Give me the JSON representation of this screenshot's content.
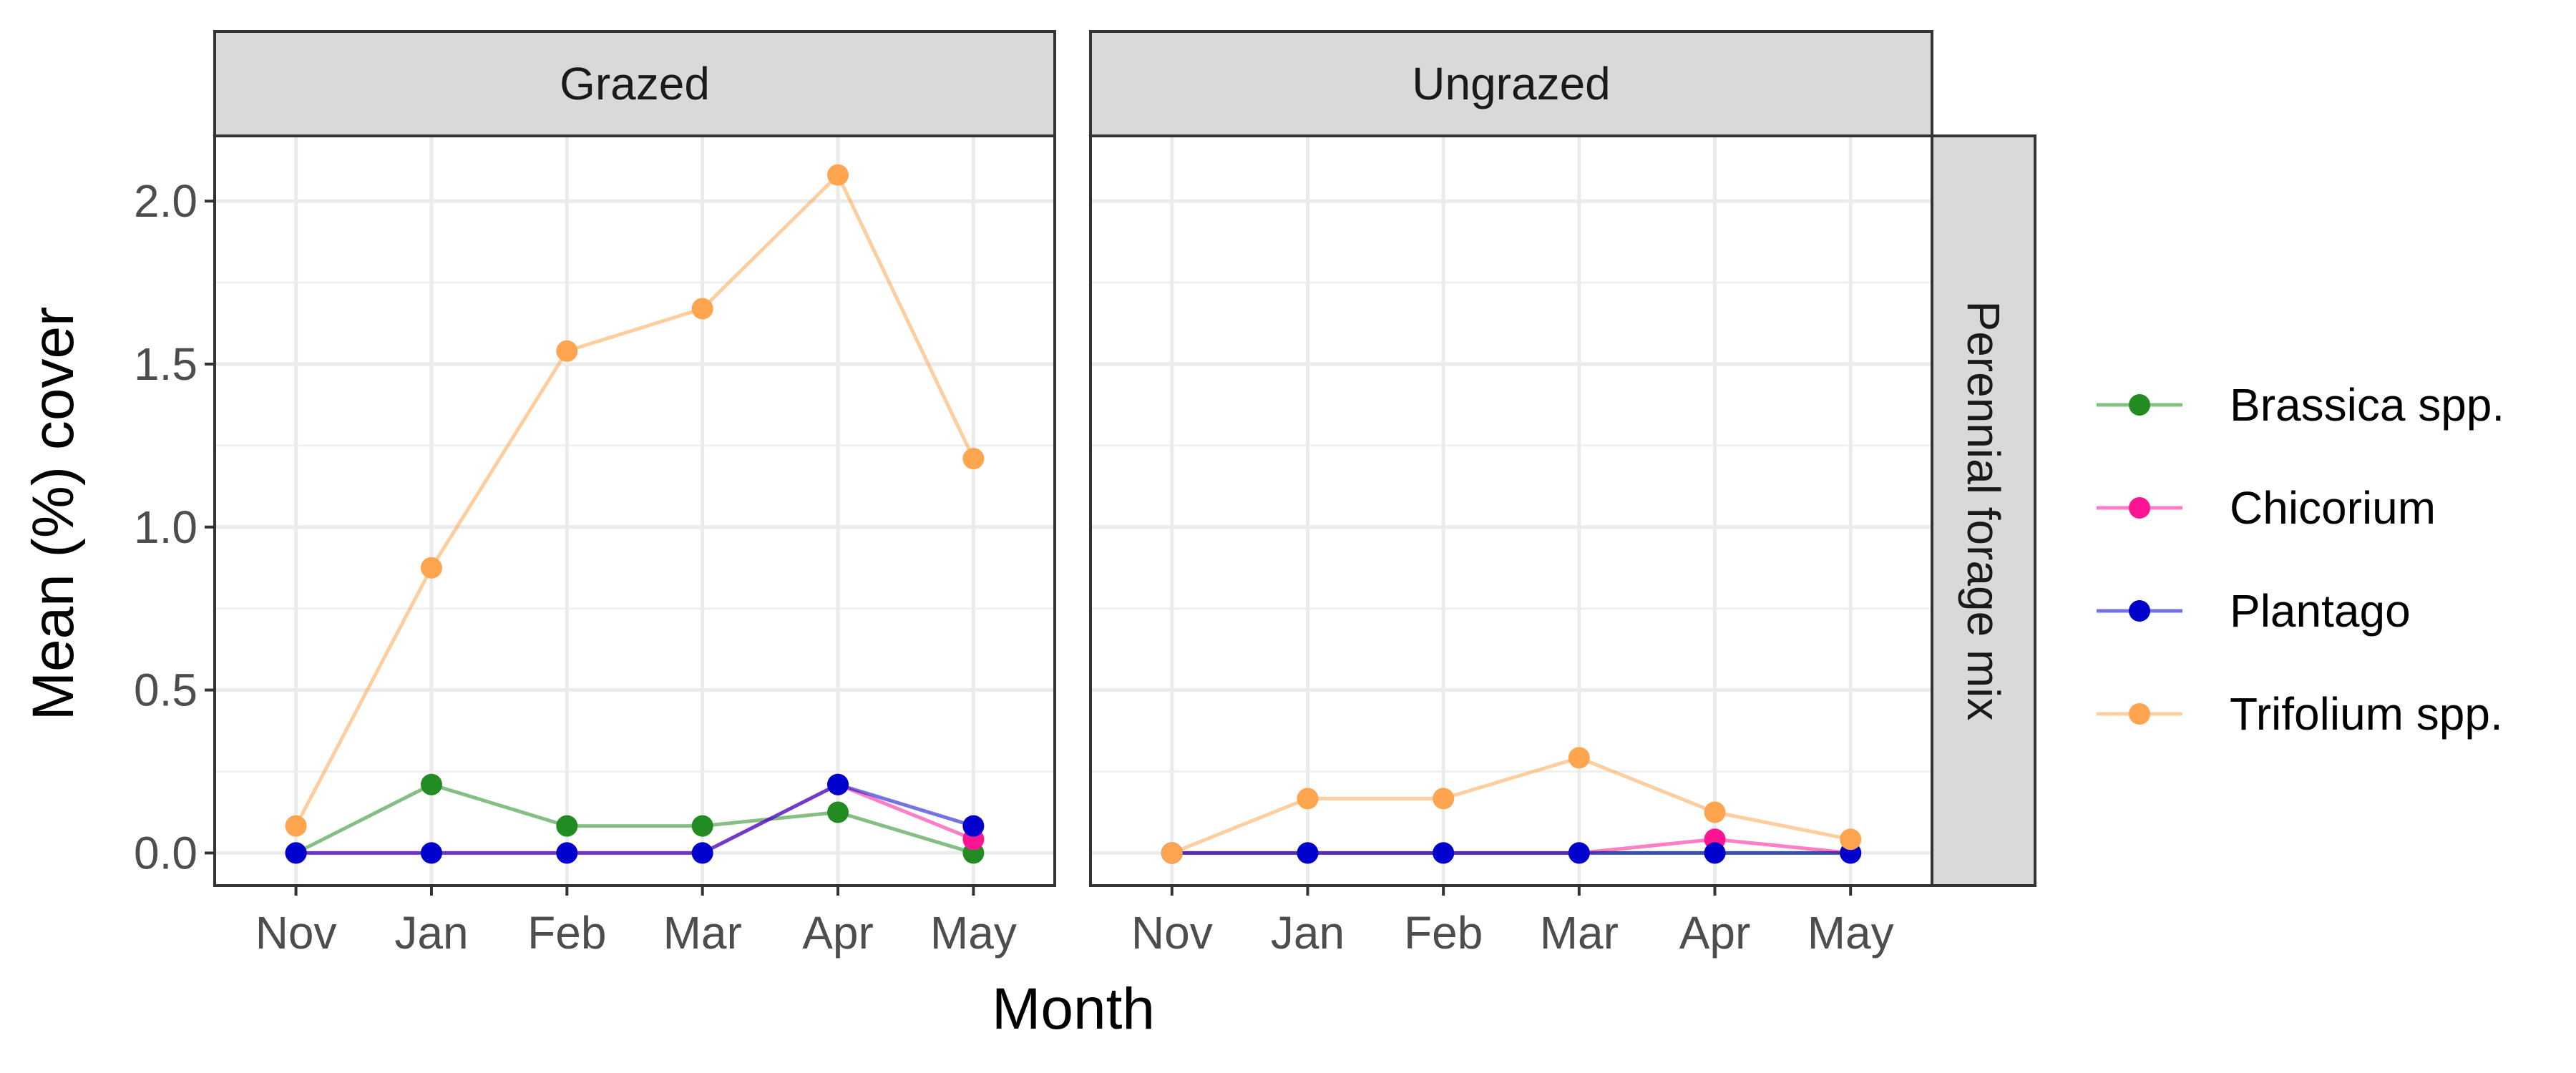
{
  "chart_data": {
    "type": "line",
    "xlabel": "Month",
    "ylabel": "Mean (%) cover",
    "ylim": [
      -0.1,
      2.2
    ],
    "y_ticks": [
      0.0,
      0.5,
      1.0,
      1.5,
      2.0
    ],
    "y_tick_labels": [
      "0.0",
      "0.5",
      "1.0",
      "1.5",
      "2.0"
    ],
    "categories": [
      "Nov",
      "Jan",
      "Feb",
      "Mar",
      "Apr",
      "May"
    ],
    "grid": true,
    "legend_position": "right",
    "row_strip": "Perennial forage mix",
    "series_styles": [
      {
        "name": "Brassica spp.",
        "color": "#228B22"
      },
      {
        "name": "Chicorium",
        "color": "#FF1493"
      },
      {
        "name": "Plantago",
        "color": "#0000CD"
      },
      {
        "name": "Trifolium spp.",
        "color": "#FFA54F"
      }
    ],
    "panels": [
      {
        "strip": "Grazed",
        "series": [
          {
            "name": "Brassica spp.",
            "values": [
              0.0,
              0.21,
              0.083,
              0.083,
              0.125,
              0.0
            ]
          },
          {
            "name": "Chicorium",
            "values": [
              0.0,
              0.0,
              0.0,
              0.0,
              0.21,
              0.042
            ]
          },
          {
            "name": "Plantago",
            "values": [
              0.0,
              0.0,
              0.0,
              0.0,
              0.21,
              0.083
            ]
          },
          {
            "name": "Trifolium spp.",
            "values": [
              0.083,
              0.875,
              1.54,
              1.67,
              2.08,
              1.21
            ]
          }
        ]
      },
      {
        "strip": "Ungrazed",
        "series": [
          {
            "name": "Brassica spp.",
            "values": [
              0.0,
              0.0,
              0.0,
              0.0,
              0.0,
              0.0
            ]
          },
          {
            "name": "Chicorium",
            "values": [
              0.0,
              0.0,
              0.0,
              0.0,
              0.042,
              0.0
            ]
          },
          {
            "name": "Plantago",
            "values": [
              0.0,
              0.0,
              0.0,
              0.0,
              0.0,
              0.0
            ]
          },
          {
            "name": "Trifolium spp.",
            "values": [
              0.0,
              0.167,
              0.167,
              0.292,
              0.125,
              0.042
            ]
          }
        ]
      }
    ]
  }
}
